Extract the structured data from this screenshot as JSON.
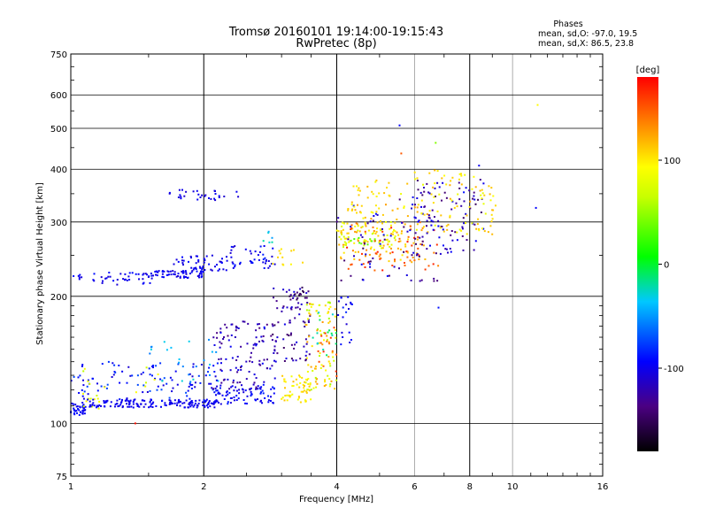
{
  "chart_data": {
    "type": "scatter",
    "title": "Tromsø 20160101 19:14:00-19:15:43",
    "subtitle": "RwPretec (8p)",
    "xlabel": "Frequency [MHz]",
    "ylabel": "Stationary phase Virtual Height [km]",
    "x_scale": "log",
    "y_scale": "log",
    "xlim": [
      1,
      16
    ],
    "ylim": [
      75,
      750
    ],
    "x_ticks": [
      1,
      2,
      4,
      6,
      8,
      10,
      16
    ],
    "x_tick_labels": [
      "1",
      "2",
      "4",
      "6",
      "8",
      "10",
      "16"
    ],
    "y_ticks": [
      75,
      100,
      200,
      300,
      400,
      500,
      600,
      750
    ],
    "y_tick_labels": [
      "75",
      "100",
      "200",
      "300",
      "400",
      "500",
      "600",
      "750"
    ],
    "grid": true,
    "stats": {
      "heading": "Phases",
      "line_o": "mean, sd,O: -97.0, 19.5",
      "line_x": "mean, sd,X:  86.5, 23.8"
    },
    "colorbar": {
      "label": "[deg]",
      "range": [
        -180,
        180
      ],
      "ticks": [
        100,
        0,
        -100
      ],
      "tick_labels": [
        "100",
        "0",
        "-100"
      ]
    },
    "clusters": [
      {
        "x": [
          1.0,
          1.08
        ],
        "y": [
          104,
          112
        ],
        "phase": [
          -108,
          -85
        ],
        "n": 40
      },
      {
        "x": [
          1.07,
          1.2
        ],
        "y": [
          107,
          118
        ],
        "phase": [
          55,
          100
        ],
        "n": 10
      },
      {
        "x": [
          1.1,
          2.15
        ],
        "y": [
          109,
          114
        ],
        "phase": [
          -105,
          -95
        ],
        "n": 160
      },
      {
        "x": [
          2.1,
          2.95
        ],
        "y": [
          111,
          124
        ],
        "phase": [
          -108,
          -85
        ],
        "n": 80
      },
      {
        "x": [
          1.0,
          2.2
        ],
        "y": [
          113,
          140
        ],
        "phase": [
          -110,
          -70
        ],
        "n": 110
      },
      {
        "x": [
          1.5,
          2.2
        ],
        "y": [
          125,
          160
        ],
        "phase": [
          -60,
          -25
        ],
        "n": 25
      },
      {
        "x": [
          1.0,
          1.6
        ],
        "y": [
          117,
          136
        ],
        "phase": [
          60,
          95
        ],
        "n": 12
      },
      {
        "x": [
          2.1,
          2.9
        ],
        "y": [
          120,
          175
        ],
        "phase": [
          -140,
          -95
        ],
        "n": 110
      },
      {
        "x": [
          2.85,
          3.5
        ],
        "y": [
          140,
          210
        ],
        "phase": [
          -150,
          -100
        ],
        "n": 80
      },
      {
        "x": [
          3.1,
          3.4
        ],
        "y": [
          195,
          210
        ],
        "phase": [
          -160,
          -130
        ],
        "n": 12
      },
      {
        "x": [
          3.0,
          3.55
        ],
        "y": [
          112,
          130
        ],
        "phase": [
          85,
          120
        ],
        "n": 55
      },
      {
        "x": [
          3.4,
          4.0
        ],
        "y": [
          120,
          195
        ],
        "phase": [
          50,
          130
        ],
        "n": 90
      },
      {
        "x": [
          3.6,
          4.0
        ],
        "y": [
          125,
          170
        ],
        "phase": [
          140,
          170
        ],
        "n": 15
      },
      {
        "x": [
          3.5,
          4.0
        ],
        "y": [
          145,
          185
        ],
        "phase": [
          -40,
          -5
        ],
        "n": 15
      },
      {
        "x": [
          4.0,
          4.35
        ],
        "y": [
          150,
          200
        ],
        "phase": [
          -110,
          -80
        ],
        "n": 20
      },
      {
        "x": [
          1.0,
          1.55
        ],
        "y": [
          212,
          228
        ],
        "phase": [
          -110,
          -90
        ],
        "n": 45
      },
      {
        "x": [
          1.5,
          2.0
        ],
        "y": [
          221,
          230
        ],
        "phase": [
          -110,
          -90
        ],
        "n": 60
      },
      {
        "x": [
          1.7,
          2.35
        ],
        "y": [
          230,
          250
        ],
        "phase": [
          -110,
          -90
        ],
        "n": 50
      },
      {
        "x": [
          2.3,
          2.9
        ],
        "y": [
          232,
          265
        ],
        "phase": [
          -110,
          -85
        ],
        "n": 40
      },
      {
        "x": [
          2.7,
          2.9
        ],
        "y": [
          265,
          285
        ],
        "phase": [
          -50,
          -20
        ],
        "n": 6
      },
      {
        "x": [
          2.85,
          3.4
        ],
        "y": [
          235,
          260
        ],
        "phase": [
          90,
          110
        ],
        "n": 12
      },
      {
        "x": [
          1.65,
          2.5
        ],
        "y": [
          338,
          358
        ],
        "phase": [
          -112,
          -95
        ],
        "n": 30
      },
      {
        "x": [
          4.0,
          5.5
        ],
        "y": [
          260,
          300
        ],
        "phase": [
          60,
          110
        ],
        "n": 70
      },
      {
        "x": [
          4.2,
          4.9
        ],
        "y": [
          265,
          275
        ],
        "phase": [
          25,
          45
        ],
        "n": 12
      },
      {
        "x": [
          4.0,
          6.5
        ],
        "y": [
          240,
          330
        ],
        "phase": [
          100,
          130
        ],
        "n": 90
      },
      {
        "x": [
          4.2,
          6.8
        ],
        "y": [
          230,
          300
        ],
        "phase": [
          135,
          175
        ],
        "n": 60
      },
      {
        "x": [
          4.0,
          7.0
        ],
        "y": [
          215,
          360
        ],
        "phase": [
          -150,
          -90
        ],
        "n": 70
      },
      {
        "x": [
          6.0,
          8.6
        ],
        "y": [
          250,
          380
        ],
        "phase": [
          -150,
          -90
        ],
        "n": 90
      },
      {
        "x": [
          6.0,
          9.2
        ],
        "y": [
          280,
          400
        ],
        "phase": [
          80,
          125
        ],
        "n": 90
      },
      {
        "x": [
          4.3,
          5.8
        ],
        "y": [
          300,
          380
        ],
        "phase": [
          85,
          120
        ],
        "n": 35
      }
    ],
    "outliers": [
      {
        "x": 5.55,
        "y": 508,
        "phase": -95
      },
      {
        "x": 5.6,
        "y": 436,
        "phase": 150
      },
      {
        "x": 6.7,
        "y": 462,
        "phase": 45
      },
      {
        "x": 6.8,
        "y": 188,
        "phase": -90
      },
      {
        "x": 11.4,
        "y": 568,
        "phase": 95
      },
      {
        "x": 11.3,
        "y": 324,
        "phase": -95
      },
      {
        "x": 1.4,
        "y": 100,
        "phase": 175
      },
      {
        "x": 8.4,
        "y": 408,
        "phase": -100
      }
    ]
  }
}
